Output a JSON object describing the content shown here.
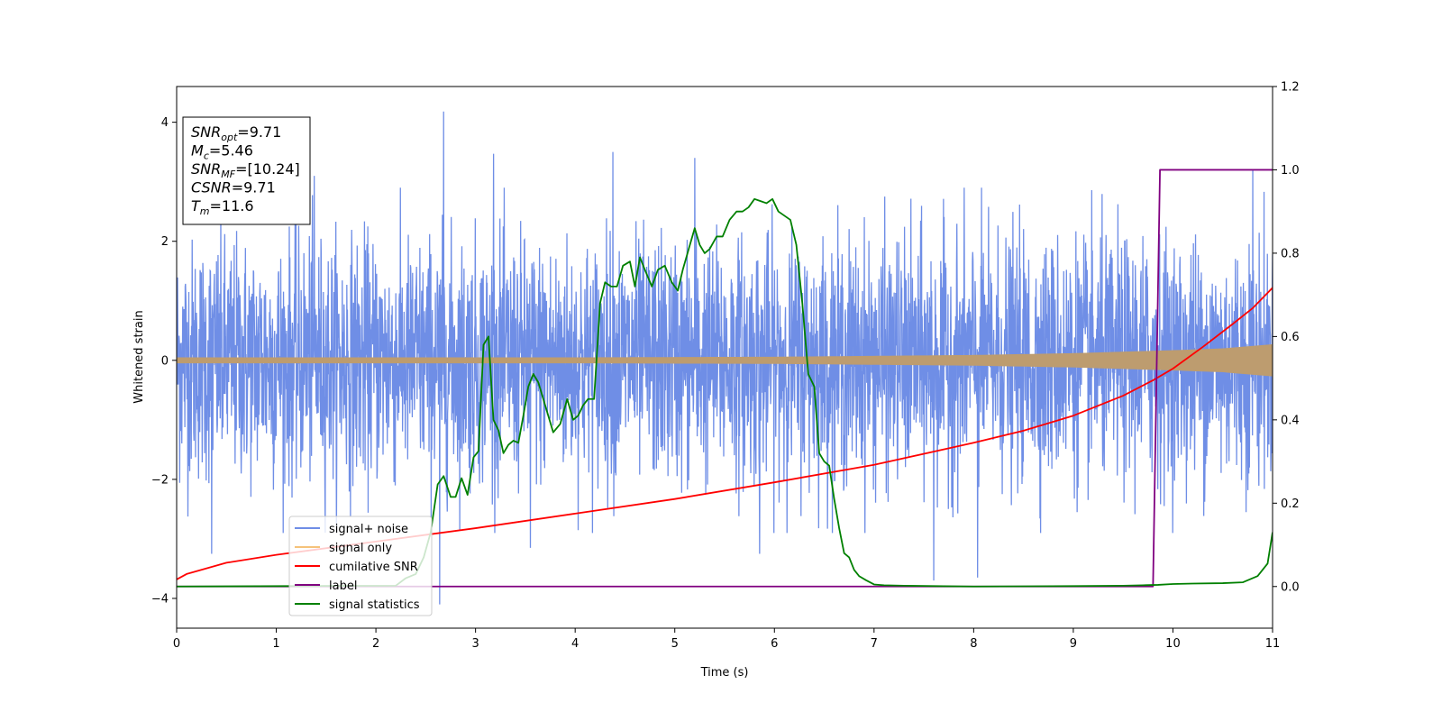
{
  "chart_data": {
    "type": "line",
    "xlabel": "Time (s)",
    "ylabel": "Whitened strain",
    "xlim": [
      0,
      11
    ],
    "ylim": [
      -4.5,
      4.6
    ],
    "y2lim": [
      -0.1,
      1.2
    ],
    "x_ticks": [
      "0",
      "1",
      "2",
      "3",
      "4",
      "5",
      "6",
      "7",
      "8",
      "9",
      "10",
      "11"
    ],
    "y_ticks": [
      "−4",
      "−2",
      "0",
      "2",
      "4"
    ],
    "y2_ticks": [
      "0.0",
      "0.2",
      "0.4",
      "0.6",
      "0.8",
      "1.0",
      "1.2"
    ],
    "legend_position": "lower-left",
    "grid": false,
    "colors": {
      "signal_noise": "#6f8ee6",
      "signal_only": "#f5c27a",
      "cumulative_snr": "#ff0000",
      "label": "#800080",
      "signal_statistics": "#008000"
    },
    "info_box": [
      {
        "sym": "SNR",
        "sub": "opt",
        "value": "=9.71"
      },
      {
        "sym": "M",
        "sub": "c",
        "value": "=5.46"
      },
      {
        "sym": "SNR",
        "sub": "MF",
        "value": "=[10.24]"
      },
      {
        "sym": "CSNR",
        "sub": "",
        "value": "=9.71"
      },
      {
        "sym": "T",
        "sub": "m",
        "value": "=11.6"
      }
    ],
    "series": [
      {
        "name": "signal+ noise",
        "axis": "left",
        "style": "noise",
        "amplitude_typical": 1.0,
        "peaks": [
          {
            "x": 2.68,
            "y": 4.18
          },
          {
            "x": 2.64,
            "y": -4.1
          },
          {
            "x": 3.18,
            "y": 3.47
          },
          {
            "x": 4.38,
            "y": 3.5
          },
          {
            "x": 5.2,
            "y": 3.4
          },
          {
            "x": 7.6,
            "y": -3.7
          },
          {
            "x": 8.04,
            "y": -3.65
          },
          {
            "x": 10.8,
            "y": 3.2
          },
          {
            "x": 1.38,
            "y": 3.1
          },
          {
            "x": 3.55,
            "y": -3.15
          },
          {
            "x": 0.35,
            "y": -3.25
          },
          {
            "x": 5.85,
            "y": -3.25
          }
        ]
      },
      {
        "name": "signal only",
        "axis": "left",
        "style": "envelope",
        "envelope": {
          "x": [
            0,
            2,
            4,
            6,
            8,
            9,
            10,
            10.5,
            11
          ],
          "y": [
            0.05,
            0.05,
            0.05,
            0.06,
            0.09,
            0.12,
            0.17,
            0.2,
            0.27
          ]
        }
      },
      {
        "name": "cumilative SNR",
        "axis": "right",
        "x": [
          0,
          0.1,
          0.5,
          1,
          2,
          3,
          4,
          5,
          6,
          7,
          8,
          8.5,
          9,
          9.5,
          9.8,
          10,
          10.3,
          10.6,
          10.8,
          11
        ],
        "y": [
          0.017,
          0.03,
          0.057,
          0.076,
          0.108,
          0.14,
          0.175,
          0.21,
          0.25,
          0.292,
          0.345,
          0.374,
          0.41,
          0.458,
          0.495,
          0.523,
          0.575,
          0.63,
          0.668,
          0.717
        ]
      },
      {
        "name": "label",
        "axis": "right",
        "x": [
          0,
          9.8,
          9.87,
          11
        ],
        "y": [
          0,
          0,
          1,
          1
        ]
      },
      {
        "name": "signal statistics",
        "axis": "right",
        "x": [
          0,
          2.2,
          2.3,
          2.4,
          2.48,
          2.55,
          2.62,
          2.68,
          2.75,
          2.8,
          2.86,
          2.92,
          2.98,
          3.03,
          3.08,
          3.13,
          3.18,
          3.23,
          3.28,
          3.33,
          3.38,
          3.43,
          3.48,
          3.53,
          3.58,
          3.63,
          3.68,
          3.73,
          3.78,
          3.85,
          3.92,
          3.98,
          4.03,
          4.08,
          4.13,
          4.19,
          4.25,
          4.3,
          4.36,
          4.42,
          4.48,
          4.55,
          4.6,
          4.65,
          4.7,
          4.77,
          4.83,
          4.9,
          4.97,
          5.03,
          5.08,
          5.14,
          5.2,
          5.25,
          5.3,
          5.35,
          5.42,
          5.48,
          5.55,
          5.62,
          5.68,
          5.74,
          5.8,
          5.86,
          5.92,
          5.98,
          6.04,
          6.1,
          6.16,
          6.22,
          6.28,
          6.34,
          6.4,
          6.45,
          6.5,
          6.55,
          6.6,
          6.65,
          6.7,
          6.75,
          6.8,
          6.85,
          6.92,
          7,
          7.1,
          7.3,
          7.6,
          8,
          9,
          9.5,
          9.7,
          9.85,
          10,
          10.2,
          10.5,
          10.7,
          10.85,
          10.95,
          11
        ],
        "y": [
          0,
          0.002,
          0.02,
          0.03,
          0.07,
          0.13,
          0.245,
          0.265,
          0.215,
          0.215,
          0.26,
          0.22,
          0.31,
          0.325,
          0.58,
          0.6,
          0.4,
          0.375,
          0.32,
          0.34,
          0.35,
          0.345,
          0.41,
          0.48,
          0.51,
          0.49,
          0.45,
          0.41,
          0.37,
          0.39,
          0.45,
          0.4,
          0.41,
          0.435,
          0.45,
          0.45,
          0.68,
          0.73,
          0.72,
          0.72,
          0.77,
          0.78,
          0.72,
          0.79,
          0.76,
          0.72,
          0.76,
          0.77,
          0.73,
          0.71,
          0.76,
          0.81,
          0.86,
          0.82,
          0.8,
          0.81,
          0.84,
          0.84,
          0.88,
          0.9,
          0.9,
          0.91,
          0.93,
          0.925,
          0.92,
          0.93,
          0.9,
          0.89,
          0.88,
          0.82,
          0.68,
          0.51,
          0.48,
          0.32,
          0.3,
          0.29,
          0.21,
          0.14,
          0.08,
          0.07,
          0.04,
          0.025,
          0.015,
          0.005,
          0.003,
          0.002,
          0.001,
          0,
          0.001,
          0.002,
          0.003,
          0.004,
          0.006,
          0.007,
          0.008,
          0.01,
          0.025,
          0.055,
          0.13
        ]
      }
    ]
  }
}
